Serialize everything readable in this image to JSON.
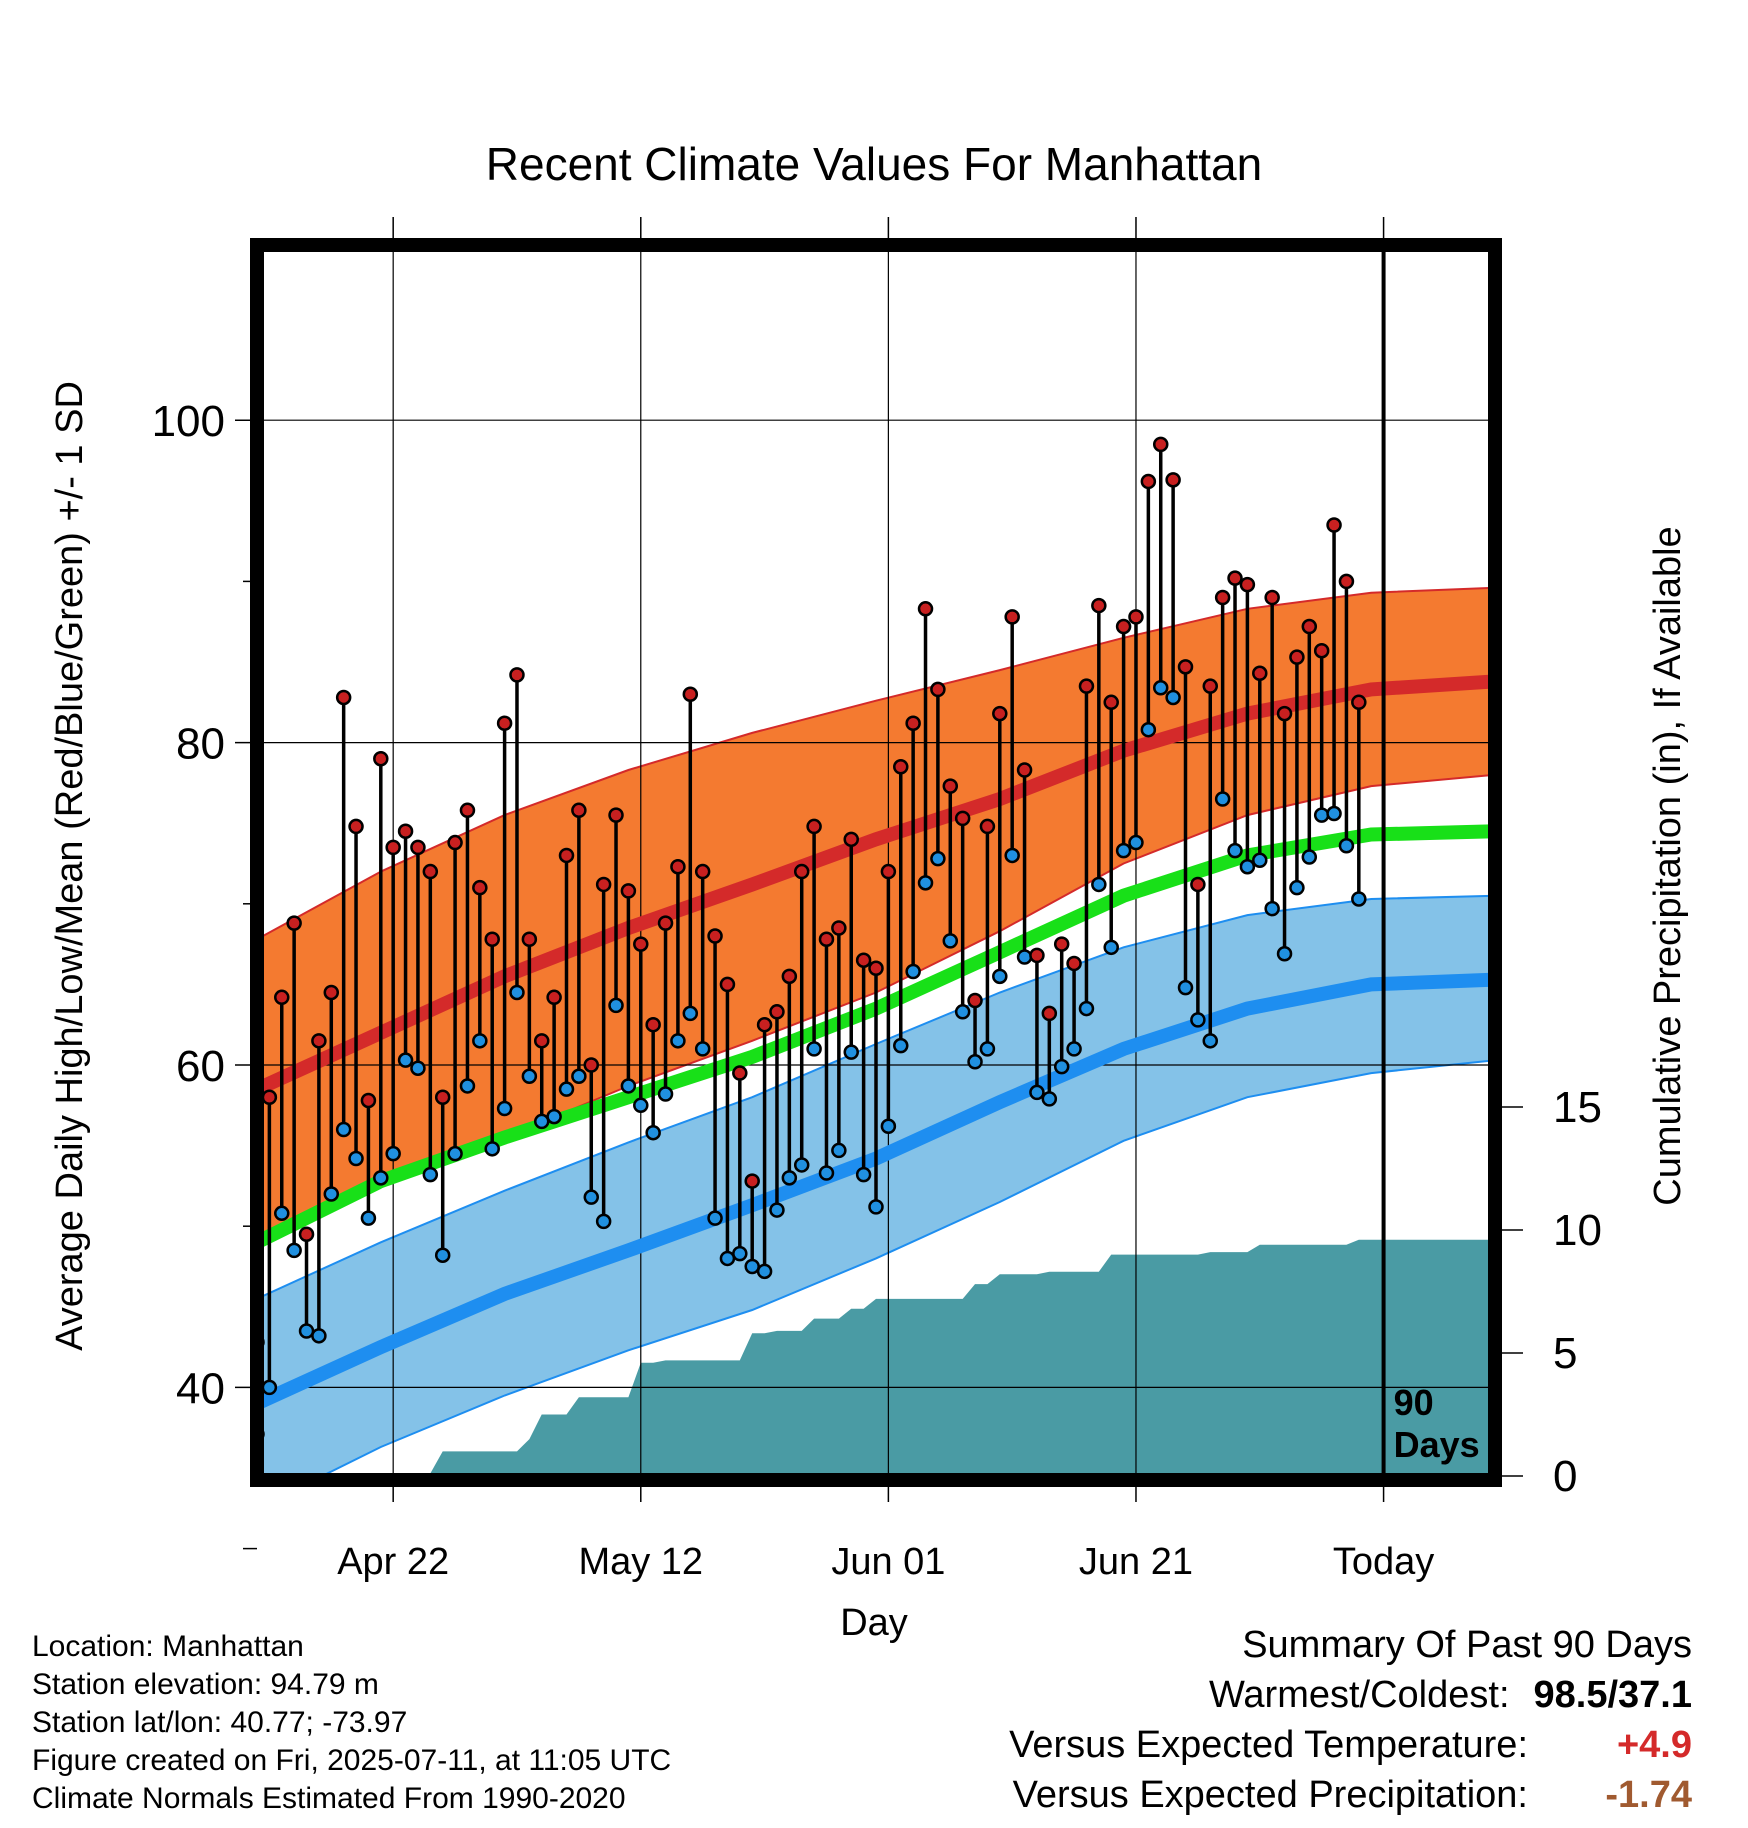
{
  "colors": {
    "high_band": "#f47a30",
    "high_mean": "#d42a2a",
    "low_band": "#84c2e8",
    "low_mean": "#1e8ef0",
    "mean": "#18e018",
    "precip": "#4a9ba4",
    "frame": "#000000",
    "high_marker": "#c82020",
    "low_marker": "#2090e0",
    "summary_temp": "#d42a2a",
    "summary_precip": "#a05a30"
  },
  "chart_data": {
    "type": "line",
    "title": "Recent Climate Values For Manhattan",
    "xlabel": "Day",
    "ylabel": "Average Daily High/Low/Mean (Red/Blue/Green) +/- 1 SD",
    "y2label": "Cumulative Precipitation (in), If Available",
    "ylim": [
      27,
      104
    ],
    "y2lim": [
      0,
      46
    ],
    "xlim": [
      0,
      100
    ],
    "y_ticks": [
      100,
      80,
      60,
      40
    ],
    "y_minor_ticks": [
      90,
      70,
      50,
      30
    ],
    "y2_ticks": [
      0,
      5,
      10,
      15
    ],
    "x_ticks": [
      {
        "day": 11,
        "label": "Apr 22"
      },
      {
        "day": 31,
        "label": "May 12"
      },
      {
        "day": 51,
        "label": "Jun 01"
      },
      {
        "day": 71,
        "label": "Jun 21"
      },
      {
        "day": 91,
        "label": "Today"
      }
    ],
    "today_day": 91,
    "today_annotation": [
      "90",
      "Days"
    ],
    "grid": true,
    "normals": {
      "days": [
        0,
        10,
        20,
        30,
        40,
        50,
        60,
        70,
        80,
        90,
        100
      ],
      "high_mean": [
        58.5,
        62,
        65.5,
        68.5,
        71.2,
        74,
        76.5,
        79.5,
        81.8,
        83.3,
        83.8
      ],
      "high_upper": [
        67.8,
        72,
        75.5,
        78.3,
        80.6,
        82.6,
        84.5,
        86.5,
        88.3,
        89.3,
        89.6
      ],
      "high_lower": [
        49.2,
        52.5,
        55.5,
        58.7,
        61.5,
        64.5,
        68.3,
        72.5,
        75.5,
        77.3,
        78
      ],
      "mean": [
        49,
        52.8,
        55.5,
        58,
        60.5,
        63.5,
        67,
        70.5,
        73,
        74.3,
        74.5
      ],
      "low_mean": [
        39,
        42.5,
        45.8,
        48.5,
        51.3,
        54.2,
        57.7,
        61,
        63.5,
        65,
        65.3
      ],
      "low_upper": [
        45.5,
        49,
        52.2,
        55.2,
        58,
        61.3,
        64.5,
        67.3,
        69.3,
        70.3,
        70.5
      ],
      "low_lower": [
        32.5,
        36.3,
        39.5,
        42.3,
        44.8,
        48,
        51.5,
        55.3,
        58,
        59.5,
        60.3
      ]
    },
    "observations": {
      "days": [
        0,
        1,
        2,
        3,
        4,
        5,
        6,
        7,
        8,
        9,
        10,
        11,
        12,
        13,
        14,
        15,
        16,
        17,
        18,
        19,
        20,
        21,
        22,
        23,
        24,
        25,
        26,
        27,
        28,
        29,
        30,
        31,
        32,
        33,
        34,
        35,
        36,
        37,
        38,
        39,
        40,
        41,
        42,
        43,
        44,
        45,
        46,
        47,
        48,
        49,
        50,
        51,
        52,
        53,
        54,
        55,
        56,
        57,
        58,
        59,
        60,
        61,
        62,
        63,
        64,
        65,
        66,
        67,
        68,
        69,
        70,
        71,
        72,
        73,
        74,
        75,
        76,
        77,
        78,
        79,
        80,
        81,
        82,
        83,
        84,
        85,
        86,
        87,
        88,
        89,
        90
      ],
      "highs": [
        42.8,
        58,
        64.2,
        68.8,
        49.5,
        61.5,
        64.5,
        82.8,
        74.8,
        57.8,
        79,
        73.5,
        74.5,
        73.5,
        72,
        58,
        73.8,
        75.8,
        71,
        67.8,
        81.2,
        84.2,
        67.8,
        61.5,
        64.2,
        73,
        75.8,
        60,
        71.2,
        75.5,
        70.8,
        67.5,
        62.5,
        68.8,
        72.3,
        83,
        72,
        68,
        65,
        59.5,
        52.8,
        62.5,
        63.3,
        65.5,
        72,
        74.8,
        67.8,
        68.5,
        74,
        66.5,
        66,
        72,
        78.5,
        81.2,
        88.3,
        83.3,
        77.3,
        75.3,
        64,
        74.8,
        81.8,
        87.8,
        78.3,
        66.8,
        63.2,
        67.5,
        66.3,
        83.5,
        88.5,
        82.5,
        87.2,
        87.8,
        96.2,
        98.5,
        96.3,
        84.7,
        71.2,
        83.5,
        89,
        90.2,
        89.8,
        84.3,
        89,
        81.8,
        85.3,
        87.2,
        85.7,
        93.5,
        90,
        82.5
      ],
      "lows": [
        37.1,
        40,
        50.8,
        48.5,
        43.5,
        43.2,
        52,
        56,
        54.2,
        50.5,
        53,
        54.5,
        60.3,
        59.8,
        53.2,
        48.2,
        54.5,
        58.7,
        61.5,
        54.8,
        57.3,
        64.5,
        59.3,
        56.5,
        56.8,
        58.5,
        59.3,
        51.8,
        50.3,
        63.7,
        58.7,
        57.5,
        55.8,
        58.2,
        61.5,
        63.2,
        61,
        50.5,
        48,
        48.3,
        47.5,
        47.2,
        51,
        53,
        53.8,
        61,
        53.3,
        54.7,
        60.8,
        53.2,
        51.2,
        56.2,
        61.2,
        65.8,
        71.3,
        72.8,
        67.7,
        63.3,
        60.2,
        61,
        65.5,
        73,
        66.7,
        58.3,
        57.9,
        59.9,
        61,
        63.5,
        71.2,
        67.3,
        73.3,
        73.8,
        80.8,
        83.4,
        82.8,
        64.8,
        62.8,
        61.5,
        76.5,
        73.3,
        72.3,
        72.7,
        69.7,
        66.9,
        71,
        72.9,
        75.5,
        75.6,
        73.6,
        70.3
      ]
    },
    "precipitation": {
      "days": [
        0,
        1,
        2,
        3,
        4,
        5,
        6,
        7,
        8,
        9,
        10,
        11,
        12,
        13,
        14,
        15,
        16,
        17,
        18,
        19,
        20,
        21,
        22,
        23,
        24,
        25,
        26,
        27,
        28,
        29,
        30,
        31,
        32,
        33,
        34,
        35,
        36,
        37,
        38,
        39,
        40,
        41,
        42,
        43,
        44,
        45,
        46,
        47,
        48,
        49,
        50,
        51,
        52,
        53,
        54,
        55,
        56,
        57,
        58,
        59,
        60,
        61,
        62,
        63,
        64,
        65,
        66,
        67,
        68,
        69,
        70,
        71,
        72,
        73,
        74,
        75,
        76,
        77,
        78,
        79,
        80,
        81,
        82,
        83,
        84,
        85,
        86,
        87,
        88,
        89,
        90,
        91,
        92,
        93,
        94,
        95,
        96,
        97,
        98,
        99,
        100
      ],
      "values": [
        0,
        0.1,
        0.1,
        0.1,
        0.1,
        0.1,
        0.1,
        0.1,
        0.1,
        0.1,
        0.1,
        0.1,
        0.1,
        0.1,
        0.1,
        1,
        1,
        1,
        1,
        1,
        1,
        1,
        1.5,
        2.5,
        2.5,
        2.5,
        3.2,
        3.2,
        3.2,
        3.2,
        3.2,
        4.6,
        4.6,
        4.7,
        4.7,
        4.7,
        4.7,
        4.7,
        4.7,
        4.7,
        5.8,
        5.8,
        5.9,
        5.9,
        5.9,
        6.4,
        6.4,
        6.4,
        6.8,
        6.8,
        7.2,
        7.2,
        7.2,
        7.2,
        7.2,
        7.2,
        7.2,
        7.2,
        7.8,
        7.8,
        8.2,
        8.2,
        8.2,
        8.2,
        8.3,
        8.3,
        8.3,
        8.3,
        8.3,
        9,
        9,
        9,
        9,
        9,
        9,
        9,
        9,
        9.1,
        9.1,
        9.1,
        9.1,
        9.4,
        9.4,
        9.4,
        9.4,
        9.4,
        9.4,
        9.4,
        9.4,
        9.6,
        9.6,
        9.6,
        9.6,
        9.6,
        9.6,
        9.6,
        9.6,
        9.6,
        9.6,
        9.6,
        9.6
      ]
    }
  },
  "info": {
    "location": "Location: Manhattan",
    "elevation": "Station elevation: 94.79 m",
    "latlon": "Station lat/lon: 40.77; -73.97",
    "created": "Figure created on Fri, 2025-07-11, at 11:05 UTC",
    "normals": "Climate Normals Estimated From 1990-2020"
  },
  "summary": {
    "title": "Summary Of Past 90 Days",
    "warmest_coldest_label": "Warmest/Coldest:",
    "warmest_coldest_value": "98.5/37.1",
    "temp_label": "Versus Expected Temperature:",
    "temp_value": "+4.9",
    "precip_label": "Versus Expected Precipitation:",
    "precip_value": "-1.74"
  }
}
